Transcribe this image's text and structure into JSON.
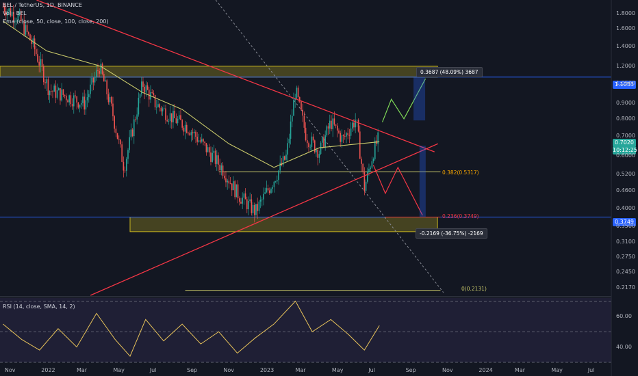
{
  "legend": {
    "symbol": "BEL / TetherUS, 1D, BINANCE",
    "volume": "Vol · BEL",
    "ema": "Ema (close, 50, close, 100, close, 200)"
  },
  "rsi_legend": "RSI (14, close, SMA, 14, 2)",
  "price_axis": [
    "1.8000",
    "1.6000",
    "1.4000",
    "1.2000",
    "1.0500",
    "0.9000",
    "0.8000",
    "0.7000",
    "0.6000",
    "0.5200",
    "0.4600",
    "0.4000",
    "0.3500",
    "0.3100",
    "0.2750",
    "0.2450",
    "0.2170"
  ],
  "rsi_axis": [
    "60.00",
    "40.00"
  ],
  "time_axis": [
    "Nov",
    "2022",
    "Mar",
    "May",
    "Jul",
    "Sep",
    "Nov",
    "2023",
    "Mar",
    "May",
    "Jul",
    "Sep",
    "Nov",
    "2024",
    "Mar",
    "May",
    "Jul"
  ],
  "tags": {
    "upper": "1.1033",
    "current": "0.7020",
    "countdown": "10:12:25",
    "lower": "0.3749"
  },
  "callouts": {
    "up": "0.3687 (48.09%) 3687",
    "down": "-0.2169 (-36.75%) -2169"
  },
  "fib": {
    "f382": "0.382(0.5317)",
    "f236": "0.236(0.3749)",
    "f0": "0(0.2131)"
  },
  "colors": {
    "bull": "#26a69a",
    "bear": "#ef5350",
    "ema": "#c9c96a",
    "triangle": "#f23645",
    "zone": "#c9b61f",
    "hline": "#2962ff",
    "rsi": "#e8c35a"
  },
  "chart_data": {
    "type": "candlestick",
    "title": "BEL / TetherUS, 1D, BINANCE",
    "scale": "log",
    "ylim": [
      0.205,
      2.0
    ],
    "xlim": [
      "2021-10-15",
      "2024-07-31"
    ],
    "close": [
      {
        "date": "2021-10-20",
        "value": 1.9
      },
      {
        "date": "2021-11-15",
        "value": 1.75
      },
      {
        "date": "2021-12-10",
        "value": 1.4
      },
      {
        "date": "2022-01-05",
        "value": 1.0
      },
      {
        "date": "2022-02-05",
        "value": 0.95
      },
      {
        "date": "2022-03-05",
        "value": 0.9
      },
      {
        "date": "2022-03-30",
        "value": 1.2
      },
      {
        "date": "2022-04-20",
        "value": 0.85
      },
      {
        "date": "2022-05-10",
        "value": 0.55
      },
      {
        "date": "2022-05-25",
        "value": 0.75
      },
      {
        "date": "2022-06-10",
        "value": 1.05
      },
      {
        "date": "2022-07-01",
        "value": 0.9
      },
      {
        "date": "2022-08-01",
        "value": 0.8
      },
      {
        "date": "2022-08-25",
        "value": 0.75
      },
      {
        "date": "2022-09-20",
        "value": 0.65
      },
      {
        "date": "2022-10-20",
        "value": 0.55
      },
      {
        "date": "2022-11-15",
        "value": 0.45
      },
      {
        "date": "2022-12-15",
        "value": 0.39
      },
      {
        "date": "2023-01-10",
        "value": 0.48
      },
      {
        "date": "2023-02-05",
        "value": 0.6
      },
      {
        "date": "2023-02-20",
        "value": 1.0
      },
      {
        "date": "2023-03-10",
        "value": 0.7
      },
      {
        "date": "2023-04-01",
        "value": 0.62
      },
      {
        "date": "2023-04-20",
        "value": 0.78
      },
      {
        "date": "2023-05-10",
        "value": 0.68
      },
      {
        "date": "2023-06-01",
        "value": 0.8
      },
      {
        "date": "2023-06-15",
        "value": 0.47
      },
      {
        "date": "2023-06-30",
        "value": 0.62
      },
      {
        "date": "2023-07-10",
        "value": 0.7
      }
    ],
    "ema_50": [
      {
        "date": "2021-10-20",
        "value": 1.7
      },
      {
        "date": "2022-01-01",
        "value": 1.35
      },
      {
        "date": "2022-04-01",
        "value": 1.2
      },
      {
        "date": "2022-06-10",
        "value": 0.98
      },
      {
        "date": "2022-08-15",
        "value": 0.86
      },
      {
        "date": "2022-11-01",
        "value": 0.66
      },
      {
        "date": "2023-01-15",
        "value": 0.55
      },
      {
        "date": "2023-04-01",
        "value": 0.64
      },
      {
        "date": "2023-07-10",
        "value": 0.67
      }
    ],
    "levels": [
      {
        "name": "resistance",
        "value": 1.1033
      },
      {
        "name": "support",
        "value": 0.3749
      },
      {
        "name": "0.382",
        "value": 0.5317
      },
      {
        "name": "0.236",
        "value": 0.3749
      },
      {
        "name": "0",
        "value": 0.2131
      }
    ],
    "zones": [
      {
        "from": 1.1033,
        "to": 1.2
      },
      {
        "from": 0.335,
        "to": 0.3749
      }
    ],
    "current_price": 0.702,
    "projections": [
      {
        "label": "0.3687 (48.09%) 3687",
        "change": 0.3687,
        "percent": 48.09
      },
      {
        "label": "-0.2169 (-36.75%) -2169",
        "change": -0.2169,
        "percent": -36.75
      }
    ],
    "rsi": {
      "params": "14, close, SMA, 14, 2",
      "ylim": [
        30,
        72
      ],
      "values": [
        {
          "date": "2021-10-20",
          "value": 55
        },
        {
          "date": "2021-11-20",
          "value": 45
        },
        {
          "date": "2021-12-20",
          "value": 38
        },
        {
          "date": "2022-01-20",
          "value": 52
        },
        {
          "date": "2022-02-20",
          "value": 40
        },
        {
          "date": "2022-03-25",
          "value": 62
        },
        {
          "date": "2022-04-25",
          "value": 45
        },
        {
          "date": "2022-05-20",
          "value": 34
        },
        {
          "date": "2022-06-15",
          "value": 58
        },
        {
          "date": "2022-07-15",
          "value": 44
        },
        {
          "date": "2022-08-15",
          "value": 55
        },
        {
          "date": "2022-09-15",
          "value": 42
        },
        {
          "date": "2022-10-15",
          "value": 50
        },
        {
          "date": "2022-11-15",
          "value": 36
        },
        {
          "date": "2022-12-15",
          "value": 46
        },
        {
          "date": "2023-01-15",
          "value": 55
        },
        {
          "date": "2023-02-20",
          "value": 70
        },
        {
          "date": "2023-03-20",
          "value": 50
        },
        {
          "date": "2023-04-20",
          "value": 58
        },
        {
          "date": "2023-05-20",
          "value": 48
        },
        {
          "date": "2023-06-15",
          "value": 38
        },
        {
          "date": "2023-07-10",
          "value": 54
        }
      ]
    }
  }
}
